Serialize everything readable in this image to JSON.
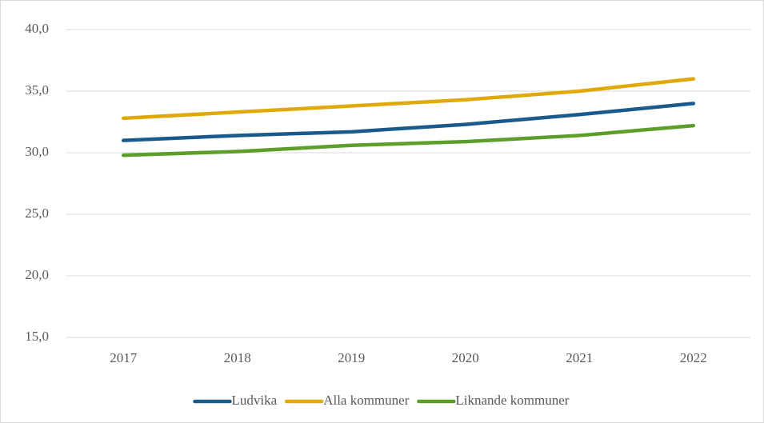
{
  "chart_data": {
    "type": "line",
    "categories": [
      "2017",
      "2018",
      "2019",
      "2020",
      "2021",
      "2022"
    ],
    "series": [
      {
        "name": "Ludvika",
        "color": "#1b5b8c",
        "values": [
          31.0,
          31.4,
          31.7,
          32.3,
          33.1,
          34.0
        ]
      },
      {
        "name": "Alla kommuner",
        "color": "#dfa90b",
        "values": [
          32.8,
          33.3,
          33.8,
          34.3,
          35.0,
          36.0
        ]
      },
      {
        "name": "Liknande kommuner",
        "color": "#5b9f2a",
        "values": [
          29.8,
          30.1,
          30.6,
          30.9,
          31.4,
          32.2
        ]
      }
    ],
    "ylim": [
      15,
      40
    ],
    "yticks": [
      {
        "value": 15,
        "label": "15,0"
      },
      {
        "value": 20,
        "label": "20,0"
      },
      {
        "value": 25,
        "label": "25,0"
      },
      {
        "value": 30,
        "label": "30,0"
      },
      {
        "value": 35,
        "label": "35,0"
      },
      {
        "value": 40,
        "label": "40,0"
      }
    ],
    "grid": true,
    "legend": "bottom"
  }
}
